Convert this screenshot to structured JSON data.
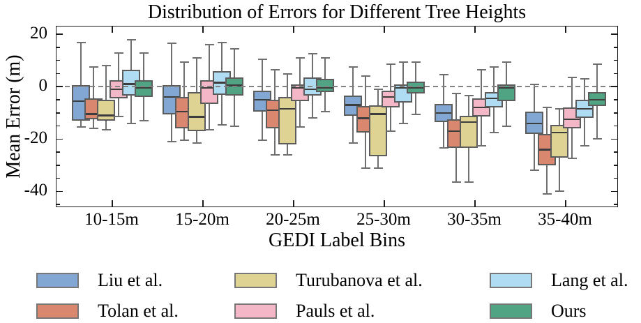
{
  "chart_data": {
    "type": "boxplot",
    "title": "Distribution of Errors for Different Tree Heights",
    "xlabel": "GEDI Label Bins",
    "ylabel": "Mean Error (m)",
    "categories": [
      "10-15m",
      "15-20m",
      "20-25m",
      "25-30m",
      "30-35m",
      "35-40m"
    ],
    "ylim": [
      -46.3,
      23
    ],
    "yticks_major": [
      20,
      0,
      -20,
      -40
    ],
    "yticks_minor": [
      15,
      10,
      5,
      -5,
      -10,
      -15,
      -25,
      -30,
      -35,
      -45
    ],
    "grid": false,
    "zero_line_y": 0,
    "legend_position": "below",
    "colors": {
      "spine": "#1b1b1b",
      "box_edge": "#5c5c5c",
      "whisker": "#6f6f6f",
      "median": "#3d3d3d",
      "zero_line": "#828282",
      "legend_swatch_border": "#777777"
    },
    "series": [
      {
        "name": "Liu et al.",
        "color": "#82A7D3",
        "boxes": [
          {
            "whislo": -15.5,
            "q1": -13.0,
            "med": -5.5,
            "q3": 0.5,
            "whishi": 17.0
          },
          {
            "whislo": -21.0,
            "q1": -10.5,
            "med": -4.0,
            "q3": 0.5,
            "whishi": 16.5
          },
          {
            "whislo": -20.5,
            "q1": -9.5,
            "med": -5.0,
            "q3": -1.5,
            "whishi": 10.5
          },
          {
            "whislo": -21.5,
            "q1": -11.0,
            "med": -7.0,
            "q3": -3.5,
            "whishi": 7.5
          },
          {
            "whislo": -23.5,
            "q1": -13.5,
            "med": -10.0,
            "q3": -6.5,
            "whishi": 4.5
          },
          {
            "whislo": -32.0,
            "q1": -18.0,
            "med": -14.0,
            "q3": -9.5,
            "whishi": 1.0
          }
        ]
      },
      {
        "name": "Tolan et al.",
        "color": "#D9876F",
        "boxes": [
          {
            "whislo": -16.0,
            "q1": -12.5,
            "med": -10.5,
            "q3": -4.5,
            "whishi": 7.5
          },
          {
            "whislo": -20.5,
            "q1": -16.0,
            "med": -9.5,
            "q3": -4.0,
            "whishi": 9.5
          },
          {
            "whislo": -26.0,
            "q1": -16.0,
            "med": -9.0,
            "q3": -5.0,
            "whishi": 6.5
          },
          {
            "whislo": -31.0,
            "q1": -17.5,
            "med": -12.0,
            "q3": -7.5,
            "whishi": 4.0
          },
          {
            "whislo": -36.5,
            "q1": -23.5,
            "med": -17.0,
            "q3": -12.5,
            "whishi": -2.5
          },
          {
            "whislo": -41.0,
            "q1": -30.0,
            "med": -24.0,
            "q3": -18.0,
            "whishi": -8.0
          }
        ]
      },
      {
        "name": "Turubanova et al.",
        "color": "#DFD394",
        "boxes": [
          {
            "whislo": -16.5,
            "q1": -13.0,
            "med": -11.0,
            "q3": -5.0,
            "whishi": 8.0
          },
          {
            "whislo": -21.5,
            "q1": -17.0,
            "med": -11.5,
            "q3": -2.0,
            "whishi": 11.0
          },
          {
            "whislo": -26.0,
            "q1": -22.0,
            "med": -8.5,
            "q3": -4.0,
            "whishi": 5.0
          },
          {
            "whislo": -31.0,
            "q1": -26.5,
            "med": -10.5,
            "q3": -7.0,
            "whishi": -1.0
          },
          {
            "whislo": -36.5,
            "q1": -23.5,
            "med": -13.5,
            "q3": -11.0,
            "whishi": -3.5
          },
          {
            "whislo": -40.0,
            "q1": -27.0,
            "med": -17.5,
            "q3": -14.5,
            "whishi": -8.5
          }
        ]
      },
      {
        "name": "Pauls et al.",
        "color": "#F3B7C8",
        "boxes": [
          {
            "whislo": -11.5,
            "q1": -4.5,
            "med": -1.0,
            "q3": 2.5,
            "whishi": 13.0
          },
          {
            "whislo": -16.5,
            "q1": -6.5,
            "med": -0.5,
            "q3": 2.5,
            "whishi": 16.0
          },
          {
            "whislo": -15.5,
            "q1": -5.5,
            "med": -0.5,
            "q3": 1.0,
            "whishi": 11.0
          },
          {
            "whislo": -17.0,
            "q1": -8.0,
            "med": -4.0,
            "q3": -1.5,
            "whishi": 8.5
          },
          {
            "whislo": -22.5,
            "q1": -11.5,
            "med": -8.0,
            "q3": -4.5,
            "whishi": 6.5
          },
          {
            "whislo": -27.5,
            "q1": -16.0,
            "med": -12.5,
            "q3": -8.0,
            "whishi": 3.5
          }
        ]
      },
      {
        "name": "Lang et al.",
        "color": "#AFDCF2",
        "boxes": [
          {
            "whislo": -14.0,
            "q1": -3.5,
            "med": 1.0,
            "q3": 6.5,
            "whishi": 18.0
          },
          {
            "whislo": -14.5,
            "q1": -3.0,
            "med": 1.5,
            "q3": 6.0,
            "whishi": 17.0
          },
          {
            "whislo": -12.0,
            "q1": -3.5,
            "med": -1.0,
            "q3": 3.5,
            "whishi": 12.5
          },
          {
            "whislo": -14.0,
            "q1": -6.0,
            "med": -0.5,
            "q3": 1.0,
            "whishi": 9.5
          },
          {
            "whislo": -17.5,
            "q1": -8.0,
            "med": -4.5,
            "q3": -2.0,
            "whishi": 7.5
          },
          {
            "whislo": -22.5,
            "q1": -12.0,
            "med": -8.5,
            "q3": -5.0,
            "whishi": 3.0
          }
        ]
      },
      {
        "name": "Ours",
        "color": "#50A383",
        "boxes": [
          {
            "whislo": -13.0,
            "q1": -4.0,
            "med": -0.5,
            "q3": 2.5,
            "whishi": 13.0
          },
          {
            "whislo": -15.0,
            "q1": -3.5,
            "med": 0.5,
            "q3": 3.5,
            "whishi": 14.5
          },
          {
            "whislo": -9.5,
            "q1": -2.0,
            "med": -0.5,
            "q3": 3.0,
            "whishi": 11.0
          },
          {
            "whislo": -10.5,
            "q1": -2.5,
            "med": -0.5,
            "q3": 2.0,
            "whishi": 9.5
          },
          {
            "whislo": -15.0,
            "q1": -5.5,
            "med": -0.5,
            "q3": 1.0,
            "whishi": 9.5
          },
          {
            "whislo": -20.0,
            "q1": -7.5,
            "med": -5.0,
            "q3": -2.0,
            "whishi": 8.5
          }
        ]
      }
    ]
  }
}
